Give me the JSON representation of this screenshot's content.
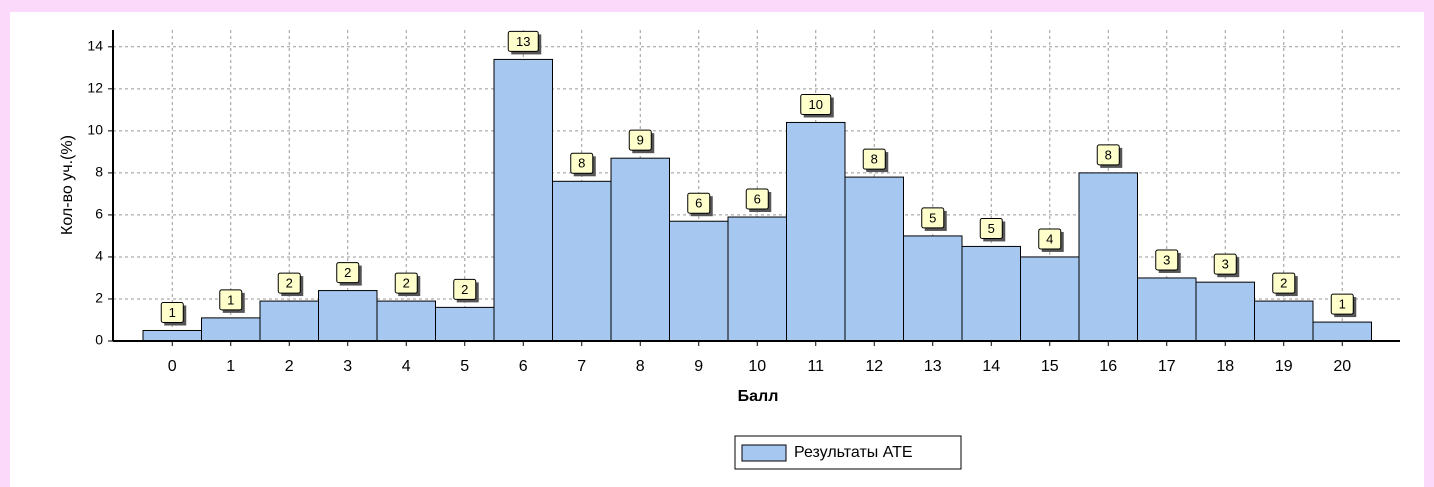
{
  "chart_data": {
    "type": "bar",
    "x_label": "Балл",
    "y_label": "Кол-во уч.(%)",
    "categories": [
      "0",
      "1",
      "2",
      "3",
      "4",
      "5",
      "6",
      "7",
      "8",
      "9",
      "10",
      "11",
      "12",
      "13",
      "14",
      "15",
      "16",
      "17",
      "18",
      "19",
      "20"
    ],
    "series": [
      {
        "name": "Результаты АТЕ",
        "color": "#a6c8f0",
        "values": [
          0.5,
          1.1,
          1.9,
          2.4,
          1.9,
          1.6,
          13.4,
          7.6,
          8.7,
          5.7,
          5.9,
          10.4,
          7.8,
          5.0,
          4.5,
          4.0,
          8.0,
          3.0,
          2.8,
          1.9,
          0.9
        ],
        "value_labels": [
          1,
          1,
          2,
          2,
          2,
          2,
          13,
          8,
          9,
          6,
          6,
          10,
          8,
          5,
          5,
          4,
          8,
          3,
          3,
          2,
          1
        ]
      }
    ],
    "ylim": [
      0,
      14.8
    ],
    "yticks": [
      0,
      2,
      4,
      6,
      8,
      10,
      12,
      14
    ],
    "grid": true
  }
}
